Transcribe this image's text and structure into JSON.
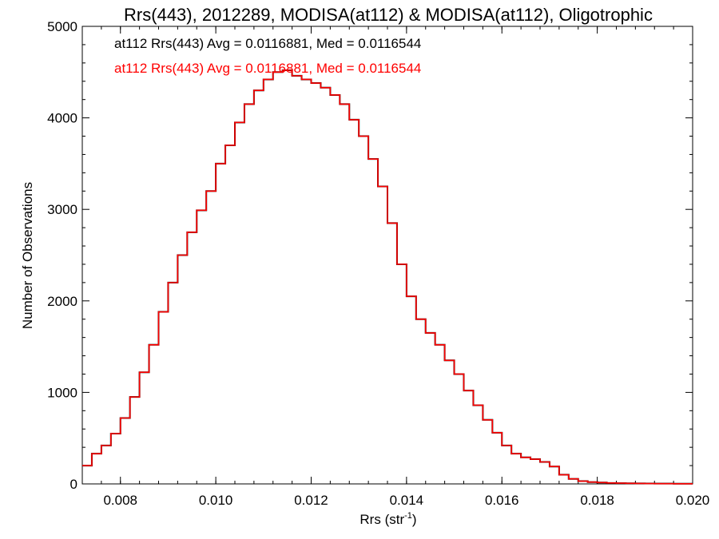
{
  "chart_data": {
    "type": "histogram",
    "title": "Rrs(443), 2012289, MODISA(at112) & MODISA(at112), Oligotrophic",
    "xlabel": "Rrs (str",
    "xlabel_sup": "-1",
    "xlabel_close": ")",
    "ylabel": "Number of Observations",
    "xlim": [
      0.0072,
      0.02
    ],
    "ylim": [
      0,
      5000
    ],
    "xticks": [
      0.008,
      0.01,
      0.012,
      0.014,
      0.016,
      0.018,
      0.02
    ],
    "xtick_labels": [
      "0.008",
      "0.010",
      "0.012",
      "0.014",
      "0.016",
      "0.018",
      "0.020"
    ],
    "yticks": [
      0,
      1000,
      2000,
      3000,
      4000,
      5000
    ],
    "ytick_labels": [
      "0",
      "1000",
      "2000",
      "3000",
      "4000",
      "5000"
    ],
    "annotations": [
      {
        "text": "at112 Rrs(443) Avg = 0.0116881, Med = 0.0116544",
        "color": "#000000"
      },
      {
        "text": "at112 Rrs(443) Avg = 0.0116881, Med = 0.0116544",
        "color": "#ff0000"
      }
    ],
    "series": [
      {
        "color": "#000000",
        "ref": "main"
      },
      {
        "color": "#ff0000",
        "ref": "main"
      }
    ],
    "main": {
      "x": [
        0.0072,
        0.0074,
        0.0076,
        0.0078,
        0.008,
        0.0082,
        0.0084,
        0.0086,
        0.0088,
        0.009,
        0.0092,
        0.0094,
        0.0096,
        0.0098,
        0.01,
        0.0102,
        0.0104,
        0.0106,
        0.0108,
        0.011,
        0.0112,
        0.0114,
        0.0116,
        0.0118,
        0.012,
        0.0122,
        0.0124,
        0.0126,
        0.0128,
        0.013,
        0.0132,
        0.0134,
        0.0136,
        0.0138,
        0.014,
        0.0142,
        0.0144,
        0.0146,
        0.0148,
        0.015,
        0.0152,
        0.0154,
        0.0156,
        0.0158,
        0.016,
        0.0162,
        0.0164,
        0.0166,
        0.0168,
        0.017,
        0.0172,
        0.0174,
        0.0176,
        0.0178,
        0.018,
        0.0182,
        0.0184,
        0.0186,
        0.0188,
        0.019,
        0.0192,
        0.0194,
        0.0196,
        0.0198,
        0.02
      ],
      "y": [
        200,
        330,
        420,
        550,
        720,
        950,
        1220,
        1520,
        1880,
        2200,
        2500,
        2750,
        2990,
        3200,
        3500,
        3700,
        3950,
        4150,
        4300,
        4420,
        4500,
        4520,
        4460,
        4420,
        4380,
        4330,
        4250,
        4150,
        3980,
        3800,
        3550,
        3250,
        2850,
        2400,
        2050,
        1800,
        1650,
        1520,
        1350,
        1200,
        1020,
        860,
        700,
        560,
        420,
        330,
        290,
        270,
        240,
        190,
        100,
        55,
        30,
        20,
        15,
        10,
        8,
        6,
        5,
        4,
        3,
        3,
        2,
        2,
        2
      ]
    }
  }
}
